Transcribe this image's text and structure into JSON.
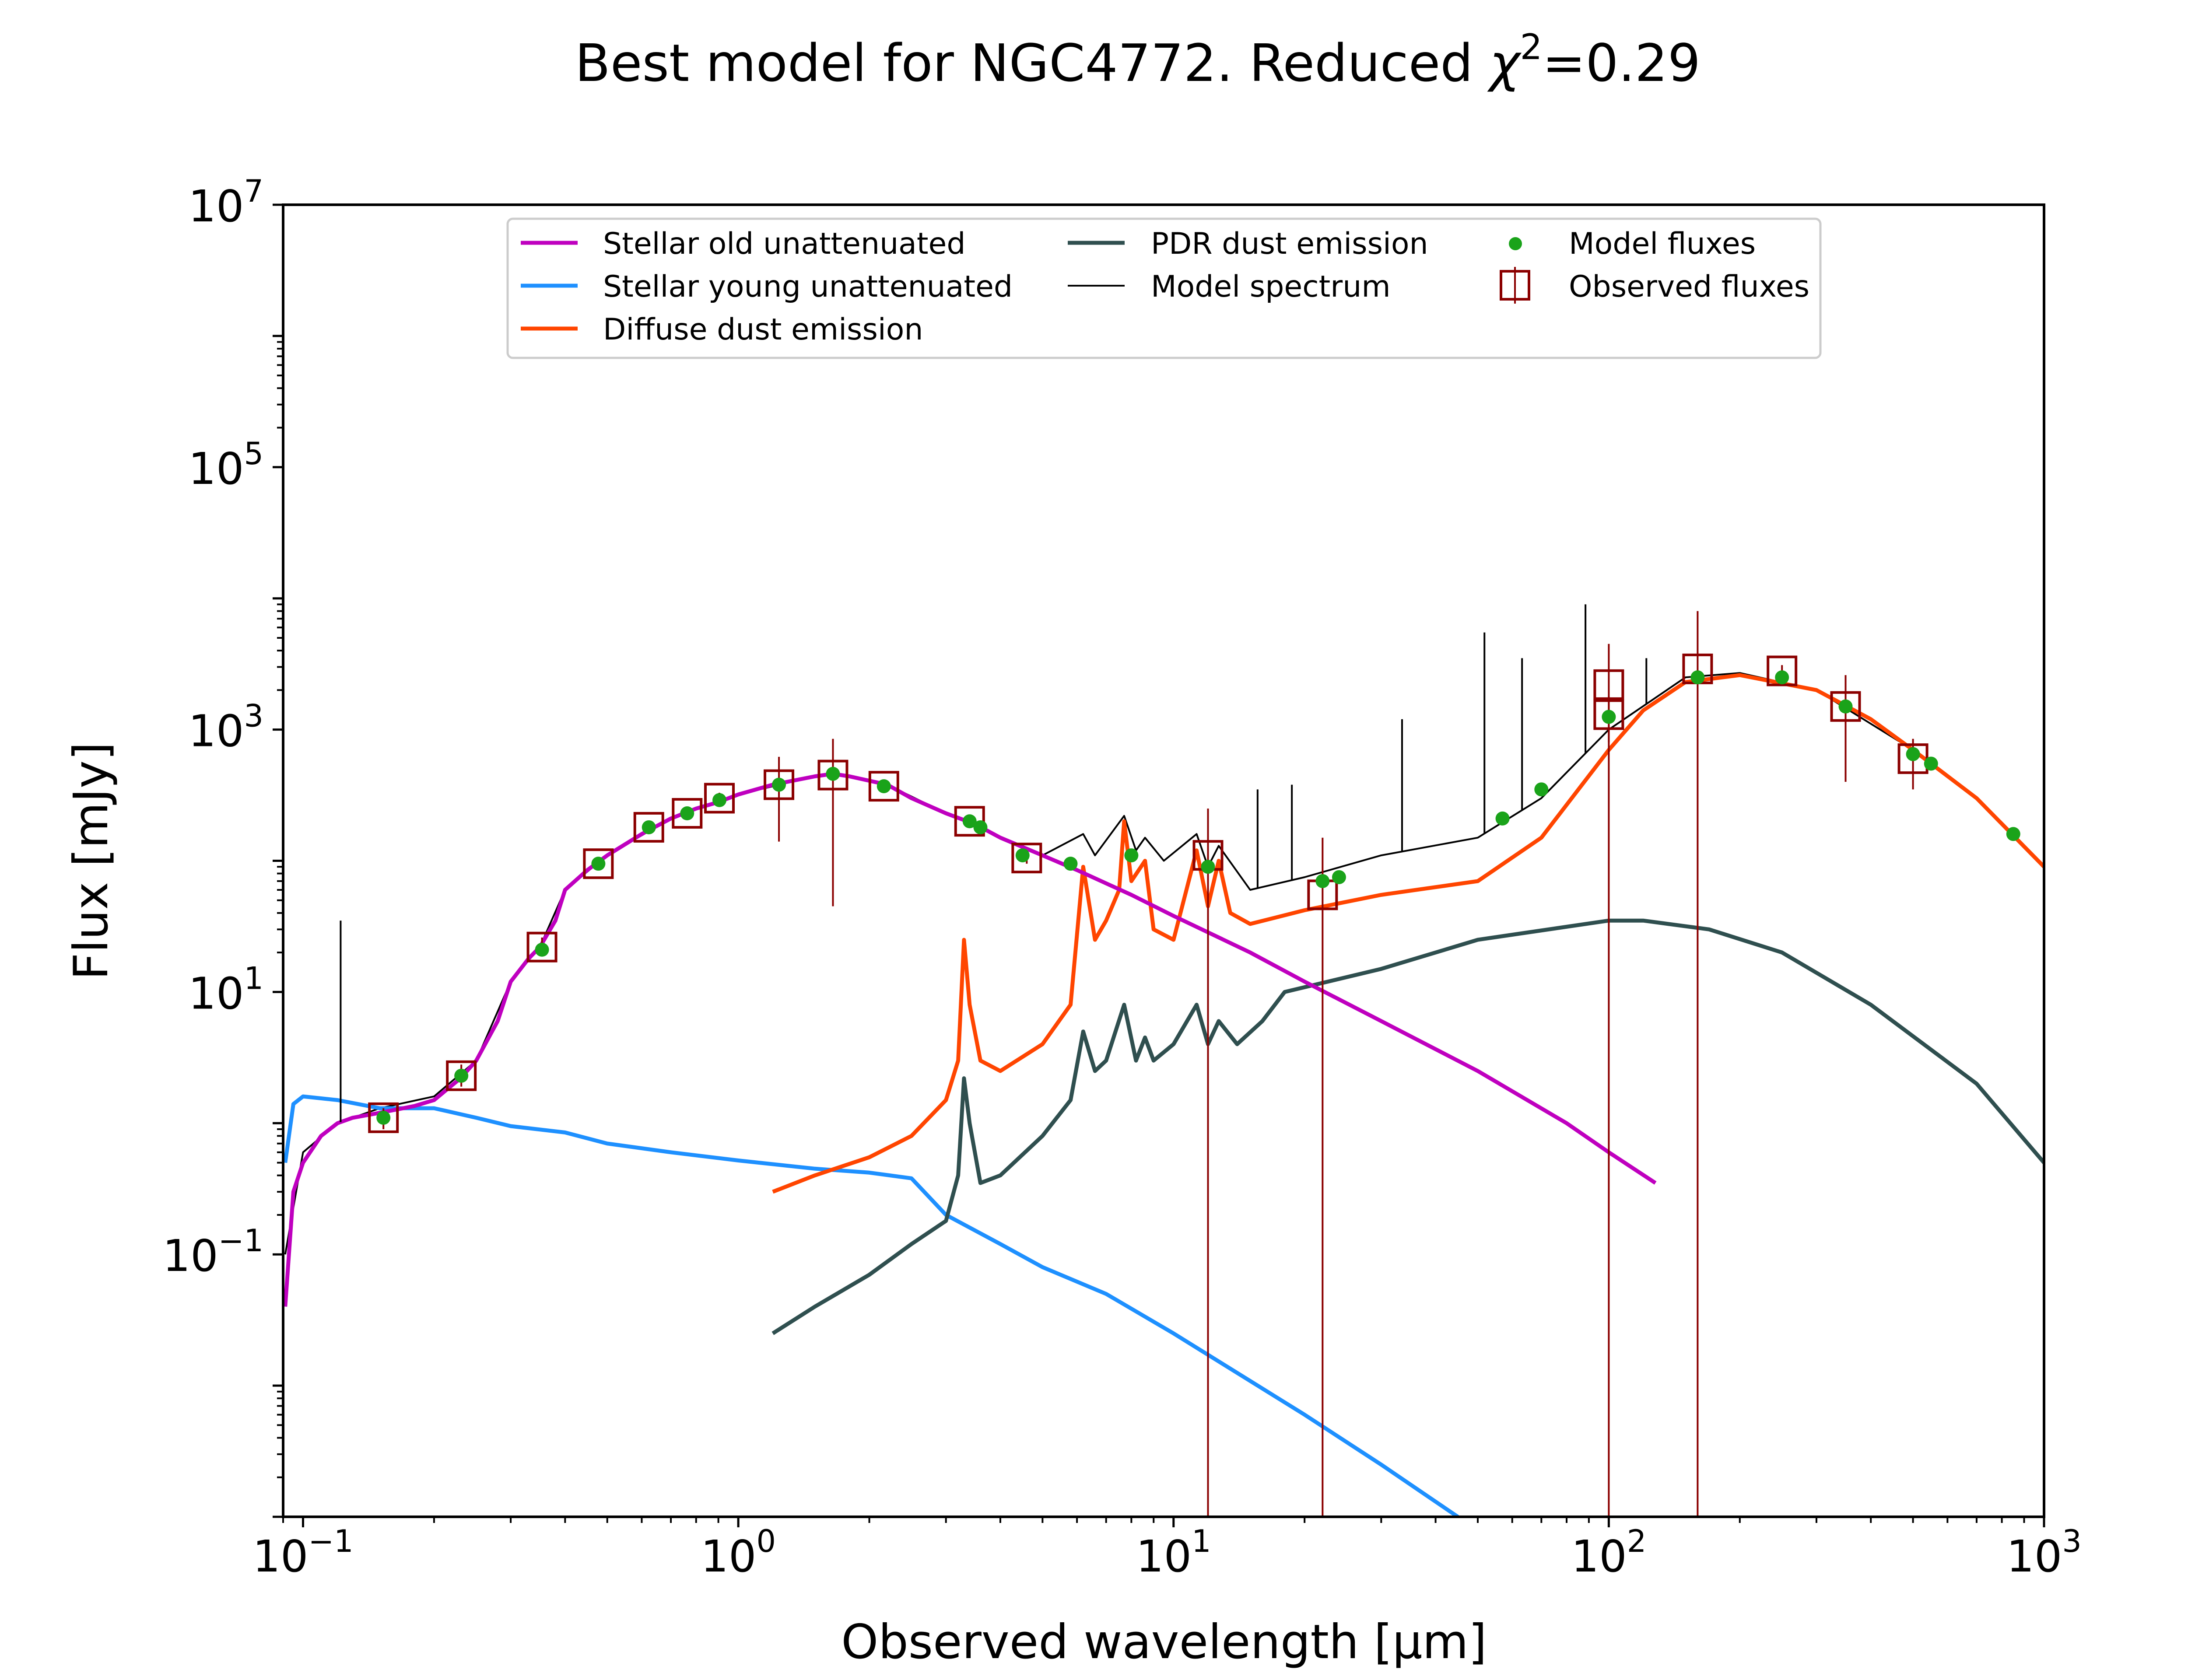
{
  "chart_data": {
    "type": "line",
    "title_prefix": "Best model for NGC4772. Reduced ",
    "title_chi": "χ",
    "title_sup": "2",
    "title_suffix": "=0.29",
    "xlabel": "Observed wavelength [μm]",
    "ylabel": "Flux [mJy]",
    "x_scale": "log",
    "y_scale": "log",
    "xlim": [
      0.09,
      1000
    ],
    "ylim": [
      0.001,
      10000000
    ],
    "x_ticks": [
      {
        "value": 0.1,
        "base": "10",
        "exp": "−1"
      },
      {
        "value": 1,
        "base": "10",
        "exp": "0"
      },
      {
        "value": 10,
        "base": "10",
        "exp": "1"
      },
      {
        "value": 100,
        "base": "10",
        "exp": "2"
      },
      {
        "value": 1000,
        "base": "10",
        "exp": "3"
      }
    ],
    "y_ticks": [
      {
        "value": 0.1,
        "base": "10",
        "exp": "−1"
      },
      {
        "value": 10,
        "base": "10",
        "exp": "1"
      },
      {
        "value": 1000,
        "base": "10",
        "exp": "3"
      },
      {
        "value": 100000,
        "base": "10",
        "exp": "5"
      },
      {
        "value": 10000000,
        "base": "10",
        "exp": "7"
      }
    ],
    "grid": false,
    "legend_position": "top-center",
    "series": [
      {
        "name": "Stellar old unattenuated",
        "color": "#bf00bf",
        "points": [
          [
            0.091,
            0.04
          ],
          [
            0.095,
            0.3
          ],
          [
            0.1,
            0.5
          ],
          [
            0.11,
            0.8
          ],
          [
            0.12,
            1.0
          ],
          [
            0.13,
            1.1
          ],
          [
            0.15,
            1.2
          ],
          [
            0.18,
            1.35
          ],
          [
            0.2,
            1.5
          ],
          [
            0.23,
            2.2
          ],
          [
            0.25,
            3.0
          ],
          [
            0.28,
            6
          ],
          [
            0.3,
            12
          ],
          [
            0.33,
            18
          ],
          [
            0.35,
            22
          ],
          [
            0.38,
            35
          ],
          [
            0.4,
            60
          ],
          [
            0.45,
            85
          ],
          [
            0.5,
            110
          ],
          [
            0.6,
            160
          ],
          [
            0.7,
            210
          ],
          [
            0.8,
            250
          ],
          [
            0.9,
            280
          ],
          [
            1.0,
            320
          ],
          [
            1.2,
            380
          ],
          [
            1.5,
            440
          ],
          [
            1.65,
            460
          ],
          [
            1.8,
            440
          ],
          [
            2.2,
            380
          ],
          [
            2.5,
            300
          ],
          [
            3.0,
            230
          ],
          [
            3.5,
            190
          ],
          [
            4.0,
            150
          ],
          [
            5.0,
            110
          ],
          [
            6.0,
            85
          ],
          [
            8.0,
            55
          ],
          [
            10.0,
            38
          ],
          [
            15,
            20
          ],
          [
            20,
            12
          ],
          [
            30,
            6
          ],
          [
            50,
            2.5
          ],
          [
            80,
            1.0
          ],
          [
            100,
            0.6
          ],
          [
            128,
            0.35
          ]
        ]
      },
      {
        "name": "Stellar young unattenuated",
        "color": "#1e90ff",
        "points": [
          [
            0.091,
            0.5
          ],
          [
            0.095,
            1.4
          ],
          [
            0.1,
            1.6
          ],
          [
            0.12,
            1.5
          ],
          [
            0.15,
            1.3
          ],
          [
            0.2,
            1.3
          ],
          [
            0.25,
            1.1
          ],
          [
            0.3,
            0.95
          ],
          [
            0.4,
            0.85
          ],
          [
            0.5,
            0.7
          ],
          [
            0.7,
            0.6
          ],
          [
            1.0,
            0.52
          ],
          [
            1.5,
            0.45
          ],
          [
            2.0,
            0.42
          ],
          [
            2.5,
            0.38
          ],
          [
            3.0,
            0.2
          ],
          [
            4.0,
            0.12
          ],
          [
            5.0,
            0.08
          ],
          [
            7.0,
            0.05
          ],
          [
            10,
            0.025
          ],
          [
            20,
            0.006
          ],
          [
            30,
            0.0025
          ],
          [
            45,
            0.001
          ]
        ]
      },
      {
        "name": "Diffuse dust emission",
        "color": "#ff4500",
        "points": [
          [
            1.2,
            0.3
          ],
          [
            1.5,
            0.4
          ],
          [
            2.0,
            0.55
          ],
          [
            2.5,
            0.8
          ],
          [
            3.0,
            1.5
          ],
          [
            3.2,
            3
          ],
          [
            3.3,
            25
          ],
          [
            3.4,
            8
          ],
          [
            3.6,
            3
          ],
          [
            4,
            2.5
          ],
          [
            5,
            4
          ],
          [
            5.8,
            8
          ],
          [
            6.2,
            90
          ],
          [
            6.6,
            25
          ],
          [
            7.0,
            35
          ],
          [
            7.5,
            60
          ],
          [
            7.7,
            200
          ],
          [
            8.0,
            70
          ],
          [
            8.6,
            100
          ],
          [
            9,
            30
          ],
          [
            10,
            25
          ],
          [
            11.3,
            120
          ],
          [
            12,
            45
          ],
          [
            12.7,
            100
          ],
          [
            13.5,
            40
          ],
          [
            15,
            33
          ],
          [
            20,
            42
          ],
          [
            30,
            55
          ],
          [
            50,
            70
          ],
          [
            70,
            150
          ],
          [
            100,
            700
          ],
          [
            120,
            1400
          ],
          [
            150,
            2300
          ],
          [
            200,
            2600
          ],
          [
            300,
            2000
          ],
          [
            400,
            1200
          ],
          [
            500,
            700
          ],
          [
            700,
            300
          ],
          [
            1000,
            90
          ]
        ]
      },
      {
        "name": "PDR dust emission",
        "color": "#2f4f4f",
        "points": [
          [
            1.2,
            0.025
          ],
          [
            1.5,
            0.04
          ],
          [
            2.0,
            0.07
          ],
          [
            2.5,
            0.12
          ],
          [
            3.0,
            0.18
          ],
          [
            3.2,
            0.4
          ],
          [
            3.3,
            2.2
          ],
          [
            3.4,
            1.0
          ],
          [
            3.6,
            0.35
          ],
          [
            4,
            0.4
          ],
          [
            5,
            0.8
          ],
          [
            5.8,
            1.5
          ],
          [
            6.2,
            5
          ],
          [
            6.6,
            2.5
          ],
          [
            7.0,
            3
          ],
          [
            7.7,
            8
          ],
          [
            8.2,
            3
          ],
          [
            8.6,
            4.5
          ],
          [
            9,
            3
          ],
          [
            10,
            4
          ],
          [
            11.3,
            8
          ],
          [
            12,
            4
          ],
          [
            12.7,
            6
          ],
          [
            14,
            4
          ],
          [
            16,
            6
          ],
          [
            18,
            10
          ],
          [
            30,
            15
          ],
          [
            50,
            25
          ],
          [
            100,
            35
          ],
          [
            120,
            35
          ],
          [
            170,
            30
          ],
          [
            250,
            20
          ],
          [
            400,
            8
          ],
          [
            700,
            2
          ],
          [
            1000,
            0.5
          ]
        ]
      },
      {
        "name": "Model spectrum",
        "color": "#000000",
        "points": [
          [
            0.091,
            0.1
          ],
          [
            0.1,
            0.6
          ],
          [
            0.12,
            1.0
          ],
          [
            0.15,
            1.3
          ],
          [
            0.2,
            1.6
          ],
          [
            0.25,
            3.0
          ],
          [
            0.3,
            12
          ],
          [
            0.35,
            22
          ],
          [
            0.4,
            60
          ],
          [
            0.5,
            110
          ],
          [
            0.7,
            210
          ],
          [
            1.0,
            320
          ],
          [
            1.5,
            440
          ],
          [
            1.65,
            460
          ],
          [
            2.2,
            380
          ],
          [
            3.0,
            230
          ],
          [
            3.5,
            190
          ],
          [
            4.0,
            150
          ],
          [
            5.0,
            110
          ],
          [
            6.2,
            160
          ],
          [
            6.6,
            110
          ],
          [
            7.7,
            220
          ],
          [
            8.2,
            120
          ],
          [
            8.6,
            150
          ],
          [
            9.5,
            100
          ],
          [
            11.3,
            160
          ],
          [
            12,
            90
          ],
          [
            12.7,
            130
          ],
          [
            15,
            60
          ],
          [
            20,
            75
          ],
          [
            30,
            110
          ],
          [
            50,
            150
          ],
          [
            70,
            300
          ],
          [
            100,
            1000
          ],
          [
            150,
            2500
          ],
          [
            200,
            2700
          ],
          [
            300,
            2000
          ],
          [
            500,
            700
          ],
          [
            700,
            300
          ],
          [
            1000,
            90
          ]
        ]
      }
    ],
    "model_spectrum_lines": [
      {
        "x": 0.122,
        "y": 35
      },
      {
        "x": 15.6,
        "y": 350
      },
      {
        "x": 18.7,
        "y": 380
      },
      {
        "x": 33.5,
        "y": 1200
      },
      {
        "x": 51.8,
        "y": 5500
      },
      {
        "x": 63.2,
        "y": 3500
      },
      {
        "x": 88.4,
        "y": 9000
      },
      {
        "x": 122,
        "y": 3500
      }
    ],
    "model_fluxes": {
      "name": "Model fluxes",
      "color": "#1aa31a",
      "points": [
        [
          0.153,
          1.1
        ],
        [
          0.231,
          2.3
        ],
        [
          0.354,
          21
        ],
        [
          0.477,
          95
        ],
        [
          0.623,
          180
        ],
        [
          0.763,
          230
        ],
        [
          0.905,
          290
        ],
        [
          1.24,
          380
        ],
        [
          1.65,
          460
        ],
        [
          2.16,
          370
        ],
        [
          3.4,
          200
        ],
        [
          3.6,
          180
        ],
        [
          4.5,
          110
        ],
        [
          5.8,
          95
        ],
        [
          8.0,
          110
        ],
        [
          12,
          90
        ],
        [
          22,
          70
        ],
        [
          24,
          75
        ],
        [
          57,
          210
        ],
        [
          70,
          350
        ],
        [
          100,
          1250
        ],
        [
          160,
          2500
        ],
        [
          250,
          2500
        ],
        [
          350,
          1500
        ],
        [
          500,
          650
        ],
        [
          550,
          550
        ],
        [
          850,
          160
        ]
      ]
    },
    "observed_fluxes": {
      "name": "Observed fluxes",
      "color": "#8b0000",
      "points": [
        {
          "x": 0.153,
          "y": 1.1,
          "lo": 0.9,
          "hi": 1.3
        },
        {
          "x": 0.231,
          "y": 2.3,
          "lo": 1.9,
          "hi": 2.8
        },
        {
          "x": 0.354,
          "y": 22,
          "lo": 19,
          "hi": 26
        },
        {
          "x": 0.477,
          "y": 95,
          "lo": 85,
          "hi": 105
        },
        {
          "x": 0.623,
          "y": 180,
          "lo": 160,
          "hi": 200
        },
        {
          "x": 0.763,
          "y": 230,
          "lo": 210,
          "hi": 250
        },
        {
          "x": 0.905,
          "y": 300,
          "lo": 270,
          "hi": 330
        },
        {
          "x": 1.24,
          "y": 380,
          "lo": 140,
          "hi": 620
        },
        {
          "x": 1.65,
          "y": 450,
          "lo": 45,
          "hi": 850
        },
        {
          "x": 2.16,
          "y": 370,
          "lo": 340,
          "hi": 400
        },
        {
          "x": 3.4,
          "y": 200,
          "lo": 180,
          "hi": 220
        },
        {
          "x": 4.6,
          "y": 105,
          "lo": 95,
          "hi": 115
        },
        {
          "x": 12,
          "y": 110,
          "lo": 0.001,
          "hi": 250
        },
        {
          "x": 22,
          "y": 55,
          "lo": 0.001,
          "hi": 150
        },
        {
          "x": 100,
          "y": 2200,
          "lo": 0.001,
          "hi": 4500
        },
        {
          "x": 100,
          "y": 1300,
          "lo": 800,
          "hi": 1800
        },
        {
          "x": 160,
          "y": 2900,
          "lo": 0.001,
          "hi": 8000
        },
        {
          "x": 250,
          "y": 2800,
          "lo": 2500,
          "hi": 3100
        },
        {
          "x": 350,
          "y": 1500,
          "lo": 400,
          "hi": 2600
        },
        {
          "x": 500,
          "y": 600,
          "lo": 350,
          "hi": 850
        }
      ]
    }
  }
}
